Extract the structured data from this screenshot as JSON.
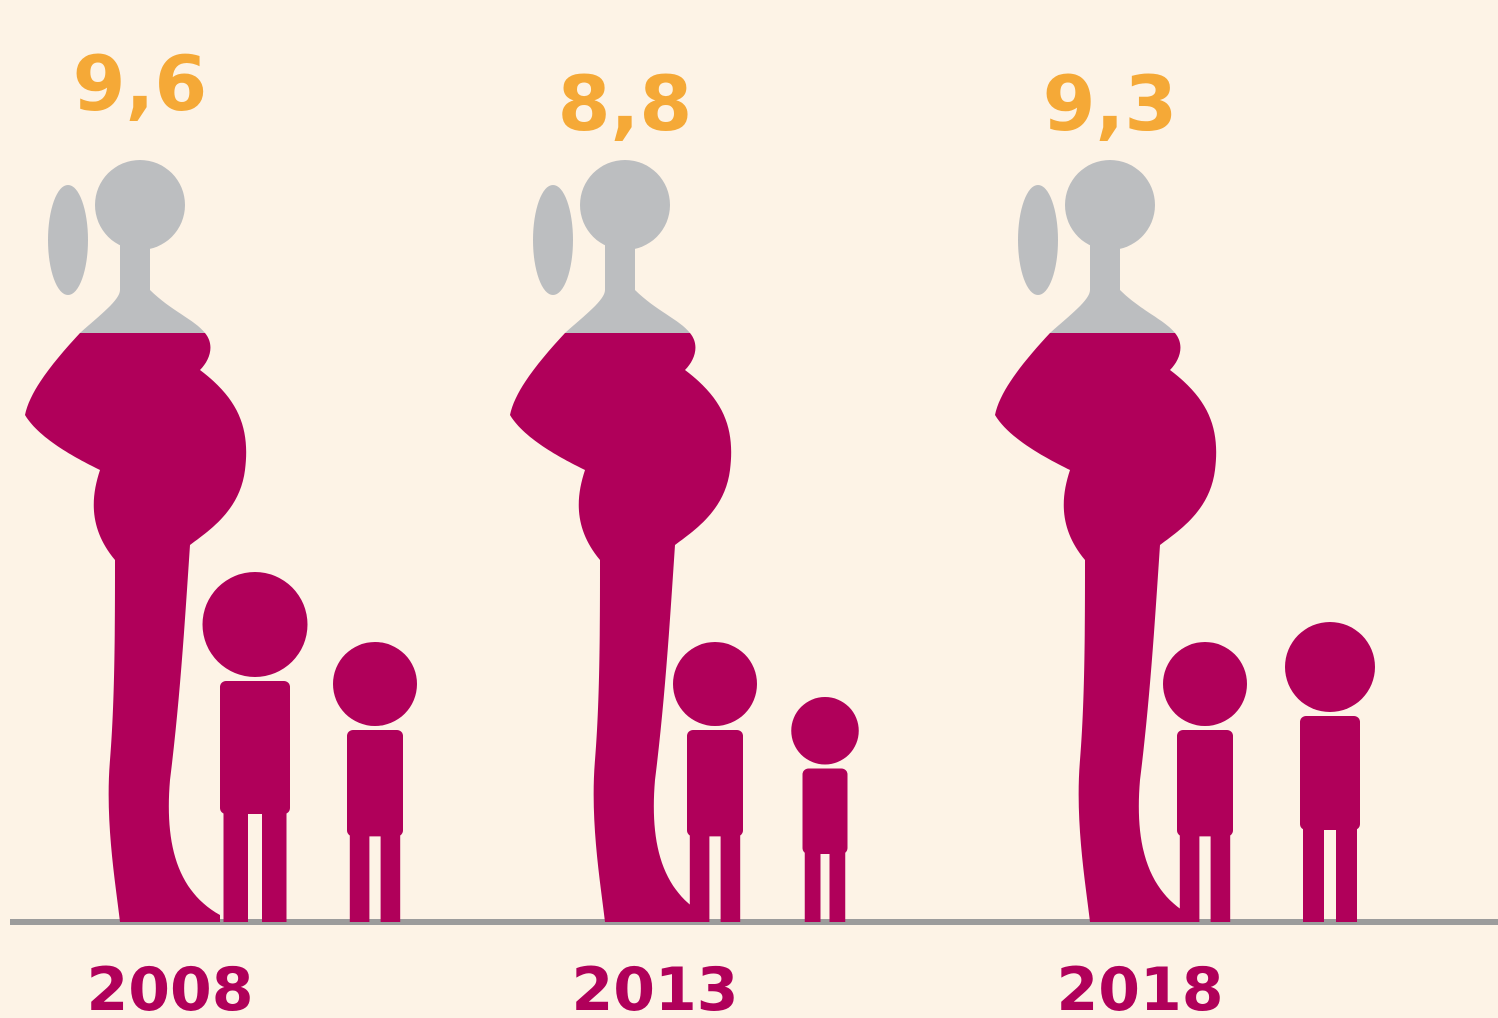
{
  "chart_data": {
    "type": "pictogram",
    "categories": [
      "2008",
      "2013",
      "2018"
    ],
    "values": [
      9.6,
      8.8,
      9.3
    ],
    "value_labels": [
      "9,6",
      "8,8",
      "9,3"
    ],
    "color": "#b0005a",
    "label_color": "#f5a937",
    "head_color": "#bcbec0",
    "category_color": "#b0005a"
  }
}
